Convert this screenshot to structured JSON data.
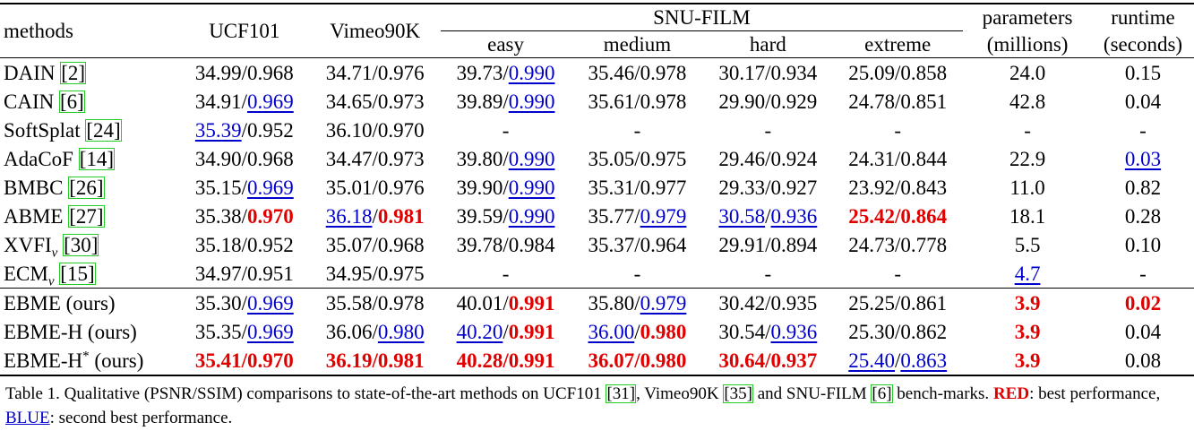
{
  "table": {
    "headers": {
      "methods": "methods",
      "ucf101": "UCF101",
      "vimeo": "Vimeo90K",
      "snu": "SNU-FILM",
      "easy": "easy",
      "medium": "medium",
      "hard": "hard",
      "extreme": "extreme",
      "params_line1": "parameters",
      "params_line2": "(millions)",
      "runtime_line1": "runtime",
      "runtime_line2": "(seconds)"
    },
    "rows": [
      {
        "name": "DAIN",
        "sub": "",
        "sup": "",
        "ref": "2",
        "cells": [
          [
            [
              "34.99",
              ""
            ],
            [
              "/",
              ""
            ],
            [
              "0.968",
              ""
            ]
          ],
          [
            [
              "34.71",
              ""
            ],
            [
              "/",
              ""
            ],
            [
              "0.976",
              ""
            ]
          ],
          [
            [
              "39.73",
              ""
            ],
            [
              "/",
              ""
            ],
            [
              "0.990",
              "second"
            ]
          ],
          [
            [
              "35.46",
              ""
            ],
            [
              "/",
              ""
            ],
            [
              "0.978",
              ""
            ]
          ],
          [
            [
              "30.17",
              ""
            ],
            [
              "/",
              ""
            ],
            [
              "0.934",
              ""
            ]
          ],
          [
            [
              "25.09",
              ""
            ],
            [
              "/",
              ""
            ],
            [
              "0.858",
              ""
            ]
          ],
          [
            [
              "24.0",
              ""
            ]
          ],
          [
            [
              "0.15",
              ""
            ]
          ]
        ]
      },
      {
        "name": "CAIN",
        "sub": "",
        "sup": "",
        "ref": "6",
        "cells": [
          [
            [
              "34.91",
              ""
            ],
            [
              "/",
              ""
            ],
            [
              "0.969",
              "second"
            ]
          ],
          [
            [
              "34.65",
              ""
            ],
            [
              "/",
              ""
            ],
            [
              "0.973",
              ""
            ]
          ],
          [
            [
              "39.89",
              ""
            ],
            [
              "/",
              ""
            ],
            [
              "0.990",
              "second"
            ]
          ],
          [
            [
              "35.61",
              ""
            ],
            [
              "/",
              ""
            ],
            [
              "0.978",
              ""
            ]
          ],
          [
            [
              "29.90",
              ""
            ],
            [
              "/",
              ""
            ],
            [
              "0.929",
              ""
            ]
          ],
          [
            [
              "24.78",
              ""
            ],
            [
              "/",
              ""
            ],
            [
              "0.851",
              ""
            ]
          ],
          [
            [
              "42.8",
              ""
            ]
          ],
          [
            [
              "0.04",
              ""
            ]
          ]
        ]
      },
      {
        "name": "SoftSplat",
        "sub": "",
        "sup": "",
        "ref": "24",
        "cells": [
          [
            [
              "35.39",
              "second"
            ],
            [
              "/",
              ""
            ],
            [
              "0.952",
              ""
            ]
          ],
          [
            [
              "36.10",
              ""
            ],
            [
              "/",
              ""
            ],
            [
              "0.970",
              ""
            ]
          ],
          [
            [
              "-",
              ""
            ]
          ],
          [
            [
              "-",
              ""
            ]
          ],
          [
            [
              "-",
              ""
            ]
          ],
          [
            [
              "-",
              ""
            ]
          ],
          [
            [
              "-",
              ""
            ]
          ],
          [
            [
              "-",
              ""
            ]
          ]
        ]
      },
      {
        "name": "AdaCoF",
        "sub": "",
        "sup": "",
        "ref": "14",
        "cells": [
          [
            [
              "34.90",
              ""
            ],
            [
              "/",
              ""
            ],
            [
              "0.968",
              ""
            ]
          ],
          [
            [
              "34.47",
              ""
            ],
            [
              "/",
              ""
            ],
            [
              "0.973",
              ""
            ]
          ],
          [
            [
              "39.80",
              ""
            ],
            [
              "/",
              ""
            ],
            [
              "0.990",
              "second"
            ]
          ],
          [
            [
              "35.05",
              ""
            ],
            [
              "/",
              ""
            ],
            [
              "0.975",
              ""
            ]
          ],
          [
            [
              "29.46",
              ""
            ],
            [
              "/",
              ""
            ],
            [
              "0.924",
              ""
            ]
          ],
          [
            [
              "24.31",
              ""
            ],
            [
              "/",
              ""
            ],
            [
              "0.844",
              ""
            ]
          ],
          [
            [
              "22.9",
              ""
            ]
          ],
          [
            [
              "0.03",
              "second"
            ]
          ]
        ]
      },
      {
        "name": "BMBC",
        "sub": "",
        "sup": "",
        "ref": "26",
        "cells": [
          [
            [
              "35.15",
              ""
            ],
            [
              "/",
              ""
            ],
            [
              "0.969",
              "second"
            ]
          ],
          [
            [
              "35.01",
              ""
            ],
            [
              "/",
              ""
            ],
            [
              "0.976",
              ""
            ]
          ],
          [
            [
              "39.90",
              ""
            ],
            [
              "/",
              ""
            ],
            [
              "0.990",
              "second"
            ]
          ],
          [
            [
              "35.31",
              ""
            ],
            [
              "/",
              ""
            ],
            [
              "0.977",
              ""
            ]
          ],
          [
            [
              "29.33",
              ""
            ],
            [
              "/",
              ""
            ],
            [
              "0.927",
              ""
            ]
          ],
          [
            [
              "23.92",
              ""
            ],
            [
              "/",
              ""
            ],
            [
              "0.843",
              ""
            ]
          ],
          [
            [
              "11.0",
              ""
            ]
          ],
          [
            [
              "0.82",
              ""
            ]
          ]
        ]
      },
      {
        "name": "ABME",
        "sub": "",
        "sup": "",
        "ref": "27",
        "cells": [
          [
            [
              "35.38",
              ""
            ],
            [
              "/",
              ""
            ],
            [
              "0.970",
              "best"
            ]
          ],
          [
            [
              "36.18",
              "second"
            ],
            [
              "/",
              ""
            ],
            [
              "0.981",
              "best"
            ]
          ],
          [
            [
              "39.59",
              ""
            ],
            [
              "/",
              ""
            ],
            [
              "0.990",
              "second"
            ]
          ],
          [
            [
              "35.77",
              ""
            ],
            [
              "/",
              ""
            ],
            [
              "0.979",
              "second"
            ]
          ],
          [
            [
              "30.58",
              "second"
            ],
            [
              "/",
              ""
            ],
            [
              "0.936",
              "second"
            ]
          ],
          [
            [
              "25.42",
              "best"
            ],
            [
              "/",
              "best"
            ],
            [
              "0.864",
              "best"
            ]
          ],
          [
            [
              "18.1",
              ""
            ]
          ],
          [
            [
              "0.28",
              ""
            ]
          ]
        ]
      },
      {
        "name": "XVFI",
        "sub": "v",
        "sup": "",
        "ref": "30",
        "cells": [
          [
            [
              "35.18",
              ""
            ],
            [
              "/",
              ""
            ],
            [
              "0.952",
              ""
            ]
          ],
          [
            [
              "35.07",
              ""
            ],
            [
              "/",
              ""
            ],
            [
              "0.968",
              ""
            ]
          ],
          [
            [
              "39.78",
              ""
            ],
            [
              "/",
              ""
            ],
            [
              "0.984",
              ""
            ]
          ],
          [
            [
              "35.37",
              ""
            ],
            [
              "/",
              ""
            ],
            [
              "0.964",
              ""
            ]
          ],
          [
            [
              "29.91",
              ""
            ],
            [
              "/",
              ""
            ],
            [
              "0.894",
              ""
            ]
          ],
          [
            [
              "24.73",
              ""
            ],
            [
              "/",
              ""
            ],
            [
              "0.778",
              ""
            ]
          ],
          [
            [
              "5.5",
              ""
            ]
          ],
          [
            [
              "0.10",
              ""
            ]
          ]
        ]
      },
      {
        "name": "ECM",
        "sub": "v",
        "sup": "",
        "ref": "15",
        "cells": [
          [
            [
              "34.97",
              ""
            ],
            [
              "/",
              ""
            ],
            [
              "0.951",
              ""
            ]
          ],
          [
            [
              "34.95",
              ""
            ],
            [
              "/",
              ""
            ],
            [
              "0.975",
              ""
            ]
          ],
          [
            [
              "-",
              ""
            ]
          ],
          [
            [
              "-",
              ""
            ]
          ],
          [
            [
              "-",
              ""
            ]
          ],
          [
            [
              "-",
              ""
            ]
          ],
          [
            [
              "4.7",
              "second"
            ]
          ],
          [
            [
              "-",
              ""
            ]
          ]
        ]
      },
      {
        "name": "EBME (ours)",
        "sub": "",
        "sup": "",
        "ref": "",
        "cells": [
          [
            [
              "35.30",
              ""
            ],
            [
              "/",
              ""
            ],
            [
              "0.969",
              "second"
            ]
          ],
          [
            [
              "35.58",
              ""
            ],
            [
              "/",
              ""
            ],
            [
              "0.978",
              ""
            ]
          ],
          [
            [
              "40.01",
              ""
            ],
            [
              "/",
              ""
            ],
            [
              "0.991",
              "best"
            ]
          ],
          [
            [
              "35.80",
              ""
            ],
            [
              "/",
              ""
            ],
            [
              "0.979",
              "second"
            ]
          ],
          [
            [
              "30.42",
              ""
            ],
            [
              "/",
              ""
            ],
            [
              "0.935",
              ""
            ]
          ],
          [
            [
              "25.25",
              ""
            ],
            [
              "/",
              ""
            ],
            [
              "0.861",
              ""
            ]
          ],
          [
            [
              "3.9",
              "best"
            ]
          ],
          [
            [
              "0.02",
              "best"
            ]
          ]
        ]
      },
      {
        "name": "EBME-H (ours)",
        "sub": "",
        "sup": "",
        "ref": "",
        "cells": [
          [
            [
              "35.35",
              ""
            ],
            [
              "/",
              ""
            ],
            [
              "0.969",
              "second"
            ]
          ],
          [
            [
              "36.06",
              ""
            ],
            [
              "/",
              ""
            ],
            [
              "0.980",
              "second"
            ]
          ],
          [
            [
              "40.20",
              "second"
            ],
            [
              "/",
              ""
            ],
            [
              "0.991",
              "best"
            ]
          ],
          [
            [
              "36.00",
              "second"
            ],
            [
              "/",
              ""
            ],
            [
              "0.980",
              "best"
            ]
          ],
          [
            [
              "30.54",
              ""
            ],
            [
              "/",
              ""
            ],
            [
              "0.936",
              "second"
            ]
          ],
          [
            [
              "25.30",
              ""
            ],
            [
              "/",
              ""
            ],
            [
              "0.862",
              ""
            ]
          ],
          [
            [
              "3.9",
              "best"
            ]
          ],
          [
            [
              "0.04",
              ""
            ]
          ]
        ]
      },
      {
        "name": "EBME-H",
        "sub": "",
        "sup": "*",
        "suffix": " (ours)",
        "ref": "",
        "cells": [
          [
            [
              "35.41",
              "best"
            ],
            [
              "/",
              "best"
            ],
            [
              "0.970",
              "best"
            ]
          ],
          [
            [
              "36.19",
              "best"
            ],
            [
              "/",
              "best"
            ],
            [
              "0.981",
              "best"
            ]
          ],
          [
            [
              "40.28",
              "best"
            ],
            [
              "/",
              "best"
            ],
            [
              "0.991",
              "best"
            ]
          ],
          [
            [
              "36.07",
              "best"
            ],
            [
              "/",
              "best"
            ],
            [
              "0.980",
              "best"
            ]
          ],
          [
            [
              "30.64",
              "best"
            ],
            [
              "/",
              "best"
            ],
            [
              "0.937",
              "best"
            ]
          ],
          [
            [
              "25.40",
              "second"
            ],
            [
              "/",
              ""
            ],
            [
              "0.863",
              "second"
            ]
          ],
          [
            [
              "3.9",
              "best"
            ]
          ],
          [
            [
              "0.08",
              ""
            ]
          ]
        ]
      }
    ]
  },
  "caption": {
    "part1": "Table 1. Qualitative (PSNR/SSIM) comparisons to state-of-the-art methods on UCF101 ",
    "ref1": "[31]",
    "part2": ", Vimeo90K ",
    "ref2": "[35]",
    "part3": " and SNU-FILM ",
    "ref3": "[6]",
    "part4": " bench-marks. ",
    "red_label": "RED",
    "part5": ": best performance, ",
    "blue_label": "BLUE",
    "part6": ": second best performance."
  },
  "colors": {
    "best": "#e00000",
    "second": "#0000cc",
    "ref_box": "#22cc22"
  }
}
